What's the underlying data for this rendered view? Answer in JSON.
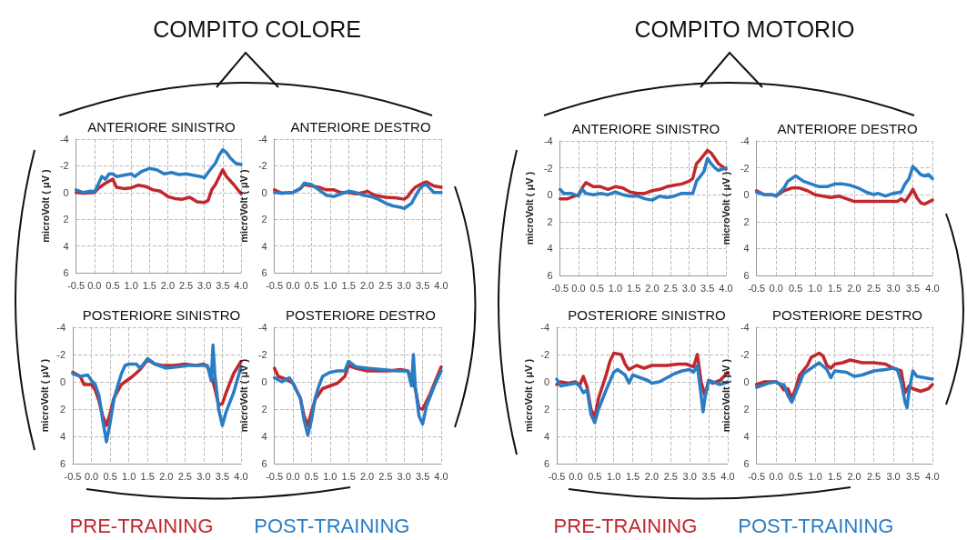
{
  "chart_data": [
    {
      "type": "line",
      "title": "ANTERIORE SINISTRO",
      "ylabel": "microVolt ( μV )",
      "annotations": [
        "COMPITO COLORE"
      ],
      "xlim": [
        -0.5,
        4.0
      ],
      "xticks": [
        -0.5,
        {
          "value": 0,
          "label": "0.0"
        },
        0.5,
        {
          "value": 1,
          "label": "1.0"
        },
        1.5,
        {
          "value": 2,
          "label": "2.0"
        },
        2.5,
        {
          "value": 3,
          "label": "3.0"
        },
        3.5,
        {
          "value": 4,
          "label": "4.0"
        }
      ],
      "ylim": [
        6,
        -4
      ],
      "yticks": [
        -4,
        -2,
        0,
        2,
        4,
        6
      ],
      "grid": true,
      "marker": "none",
      "line_style": "solid",
      "series": [
        {
          "color": "#c1272d",
          "x": [
            -0.5,
            -0.3,
            0,
            0.1,
            0.3,
            0.5,
            0.6,
            0.8,
            1.0,
            1.2,
            1.4,
            1.6,
            1.8,
            2.0,
            2.2,
            2.4,
            2.6,
            2.8,
            3.0,
            3.1,
            3.2,
            3.3,
            3.5,
            3.6,
            3.8,
            4.0
          ],
          "values": [
            0,
            0.05,
            0,
            -0.3,
            -0.7,
            -1.0,
            -0.4,
            -0.3,
            -0.35,
            -0.55,
            -0.45,
            -0.2,
            -0.1,
            0.3,
            0.45,
            0.5,
            0.35,
            0.7,
            0.75,
            0.6,
            -0.2,
            -0.6,
            -1.7,
            -1.2,
            -0.6,
            0.1
          ]
        },
        {
          "color": "#2a7dc4",
          "x": [
            -0.5,
            -0.3,
            -0.1,
            0,
            0.1,
            0.2,
            0.3,
            0.4,
            0.5,
            0.6,
            0.8,
            1.0,
            1.1,
            1.3,
            1.5,
            1.7,
            1.9,
            2.1,
            2.3,
            2.5,
            2.7,
            2.9,
            3.0,
            3.1,
            3.3,
            3.4,
            3.5,
            3.6,
            3.7,
            3.85,
            4.0
          ],
          "values": [
            -0.2,
            0,
            -0.1,
            -0.05,
            -0.6,
            -1.2,
            -1.0,
            -1.4,
            -1.4,
            -1.2,
            -1.3,
            -1.4,
            -1.2,
            -1.6,
            -1.8,
            -1.7,
            -1.4,
            -1.5,
            -1.35,
            -1.4,
            -1.3,
            -1.2,
            -1.1,
            -1.5,
            -2.2,
            -2.8,
            -3.2,
            -3.0,
            -2.6,
            -2.2,
            -2.1
          ]
        }
      ]
    },
    {
      "type": "line",
      "title": "ANTERIORE DESTRO",
      "ylabel": "microVolt ( μV )",
      "xlim": [
        -0.5,
        4.0
      ],
      "xticks": [
        -0.5,
        {
          "value": 0,
          "label": "0.0"
        },
        0.5,
        {
          "value": 1,
          "label": "1.0"
        },
        1.5,
        {
          "value": 2,
          "label": "2.0"
        },
        2.5,
        {
          "value": 3,
          "label": "3.0"
        },
        3.5,
        {
          "value": 4,
          "label": "4.0"
        }
      ],
      "ylim": [
        6,
        -4
      ],
      "yticks": [
        -4,
        -2,
        0,
        2,
        4,
        6
      ],
      "grid": true,
      "marker": "none",
      "line_style": "solid",
      "series": [
        {
          "color": "#c1272d",
          "x": [
            -0.5,
            -0.3,
            0,
            0.2,
            0.3,
            0.5,
            0.7,
            0.9,
            1.1,
            1.3,
            1.5,
            1.7,
            1.9,
            2.0,
            2.2,
            2.5,
            2.8,
            3.0,
            3.1,
            3.2,
            3.3,
            3.5,
            3.6,
            3.8,
            4.0
          ],
          "values": [
            -0.2,
            0.05,
            0,
            -0.3,
            -0.6,
            -0.5,
            -0.4,
            -0.2,
            -0.2,
            0,
            0,
            0.1,
            0,
            -0.1,
            0.2,
            0.35,
            0.4,
            0.5,
            0.3,
            -0.1,
            -0.4,
            -0.7,
            -0.8,
            -0.5,
            -0.4
          ]
        },
        {
          "color": "#2a7dc4",
          "x": [
            -0.5,
            -0.3,
            0,
            0.2,
            0.3,
            0.5,
            0.7,
            0.9,
            1.1,
            1.3,
            1.5,
            1.7,
            1.9,
            2.1,
            2.3,
            2.5,
            2.7,
            2.9,
            3.0,
            3.1,
            3.2,
            3.3,
            3.4,
            3.5,
            3.6,
            3.7,
            3.8,
            4.0
          ],
          "values": [
            0,
            0.05,
            0,
            -0.3,
            -0.7,
            -0.6,
            -0.2,
            0.2,
            0.3,
            0.1,
            -0.1,
            0,
            0.2,
            0.3,
            0.5,
            0.8,
            1.0,
            1.1,
            1.2,
            1.0,
            0.8,
            0.3,
            -0.2,
            -0.5,
            -0.6,
            -0.3,
            0,
            0
          ]
        }
      ]
    },
    {
      "type": "line",
      "title": "POSTERIORE SINISTRO",
      "ylabel": "microVolt ( μV )",
      "xlim": [
        -0.5,
        4.0
      ],
      "xticks": [
        -0.5,
        {
          "value": 0,
          "label": "0.0"
        },
        0.5,
        {
          "value": 1,
          "label": "1.0"
        },
        1.5,
        {
          "value": 2,
          "label": "2.0"
        },
        2.5,
        {
          "value": 3,
          "label": "3.0"
        },
        3.5,
        {
          "value": 4,
          "label": "4.0"
        }
      ],
      "ylim": [
        6,
        -4
      ],
      "yticks": [
        -4,
        -2,
        0,
        2,
        4,
        6
      ],
      "grid": true,
      "marker": "none",
      "line_style": "solid",
      "legend": "bottom",
      "series": [
        {
          "name": "PRE-TRAINING",
          "color": "#c1272d",
          "x": [
            -0.5,
            -0.3,
            -0.2,
            0,
            0.1,
            0.2,
            0.3,
            0.4,
            0.5,
            0.6,
            0.8,
            0.9,
            1.1,
            1.3,
            1.5,
            1.7,
            1.9,
            2.2,
            2.5,
            2.8,
            3.0,
            3.1,
            3.2,
            3.3,
            3.4,
            3.5,
            3.6,
            3.8,
            4.0
          ],
          "values": [
            -0.7,
            -0.4,
            0.2,
            0.2,
            0.6,
            1.4,
            2.5,
            3.2,
            2.3,
            1.2,
            0.2,
            0,
            -0.4,
            -0.9,
            -1.6,
            -1.3,
            -1.2,
            -1.2,
            -1.3,
            -1.2,
            -1.3,
            -1.1,
            -0.5,
            0.5,
            1.7,
            1.6,
            0.8,
            -0.6,
            -1.5
          ]
        },
        {
          "name": "POST-TRAINING",
          "color": "#2a7dc4",
          "x": [
            -0.5,
            -0.3,
            -0.1,
            0,
            0.1,
            0.2,
            0.3,
            0.4,
            0.5,
            0.6,
            0.7,
            0.8,
            0.9,
            1.0,
            1.2,
            1.3,
            1.5,
            1.7,
            2.0,
            2.3,
            2.6,
            2.9,
            3.1,
            3.2,
            3.25,
            3.3,
            3.4,
            3.5,
            3.6,
            3.8,
            4.0
          ],
          "values": [
            -0.6,
            -0.4,
            -0.5,
            -0.1,
            0.2,
            1.0,
            2.8,
            4.4,
            3.0,
            1.3,
            0.3,
            -0.6,
            -1.2,
            -1.3,
            -1.3,
            -1.0,
            -1.7,
            -1.3,
            -1.0,
            -1.1,
            -1.2,
            -1.2,
            -1.2,
            -0.1,
            -2.7,
            -0.5,
            2.0,
            3.2,
            2.2,
            0.8,
            -1.1
          ]
        }
      ]
    },
    {
      "type": "line",
      "title": "POSTERIORE DESTRO",
      "ylabel": "microVolt ( μV )",
      "xlim": [
        -0.5,
        4.0
      ],
      "xticks": [
        -0.5,
        {
          "value": 0,
          "label": "0.0"
        },
        0.5,
        {
          "value": 1,
          "label": "1.0"
        },
        1.5,
        {
          "value": 2,
          "label": "2.0"
        },
        2.5,
        {
          "value": 3,
          "label": "3.0"
        },
        3.5,
        {
          "value": 4,
          "label": "4.0"
        }
      ],
      "ylim": [
        6,
        -4
      ],
      "yticks": [
        -4,
        -2,
        0,
        2,
        4,
        6
      ],
      "grid": true,
      "marker": "none",
      "line_style": "solid",
      "series": [
        {
          "color": "#c1272d",
          "x": [
            -0.5,
            -0.4,
            -0.2,
            0,
            0.2,
            0.3,
            0.4,
            0.5,
            0.6,
            0.8,
            1.0,
            1.2,
            1.4,
            1.5,
            1.7,
            2.0,
            2.3,
            2.6,
            2.9,
            3.1,
            3.2,
            3.3,
            3.4,
            3.5,
            3.7,
            4.0
          ],
          "values": [
            -1.0,
            -0.4,
            -0.2,
            0.1,
            1.2,
            2.5,
            3.2,
            2.2,
            1.3,
            0.5,
            0.3,
            0.1,
            -0.4,
            -1.2,
            -1.0,
            -0.8,
            -0.8,
            -0.8,
            -0.9,
            -0.8,
            -0.3,
            0.5,
            1.9,
            2.0,
            0.9,
            -1.1
          ]
        },
        {
          "color": "#2a7dc4",
          "x": [
            -0.5,
            -0.3,
            -0.1,
            0,
            0.2,
            0.3,
            0.4,
            0.5,
            0.6,
            0.7,
            0.8,
            1.0,
            1.2,
            1.4,
            1.5,
            1.7,
            2.0,
            2.4,
            2.8,
            3.1,
            3.2,
            3.25,
            3.3,
            3.4,
            3.5,
            3.6,
            3.8,
            4.0
          ],
          "values": [
            -0.3,
            0,
            -0.3,
            0.1,
            1.2,
            2.8,
            3.9,
            2.8,
            1.2,
            0.3,
            -0.4,
            -0.7,
            -0.8,
            -0.8,
            -1.5,
            -1.1,
            -1.0,
            -0.9,
            -0.8,
            -0.8,
            0.3,
            -2.0,
            0.3,
            2.5,
            3.1,
            1.8,
            0.4,
            -0.8
          ]
        }
      ]
    },
    {
      "type": "line",
      "title": "ANTERIORE SINISTRO",
      "ylabel": "microVolt ( μV )",
      "annotations": [
        "COMPITO MOTORIO"
      ],
      "xlim": [
        -0.5,
        4.0
      ],
      "xticks": [
        -0.5,
        {
          "value": 0,
          "label": "0.0"
        },
        0.5,
        {
          "value": 1,
          "label": "1.0"
        },
        1.5,
        {
          "value": 2,
          "label": "2.0"
        },
        2.5,
        {
          "value": 3,
          "label": "3.0"
        },
        3.5,
        {
          "value": 4,
          "label": "4.0"
        }
      ],
      "ylim": [
        6,
        -4
      ],
      "yticks": [
        -4,
        -2,
        0,
        2,
        4,
        6
      ],
      "grid": true,
      "marker": "none",
      "line_style": "solid",
      "series": [
        {
          "color": "#c1272d",
          "x": [
            -0.5,
            -0.3,
            -0.1,
            0,
            0.1,
            0.2,
            0.4,
            0.6,
            0.8,
            1.0,
            1.2,
            1.4,
            1.6,
            1.8,
            2.0,
            2.2,
            2.4,
            2.6,
            2.8,
            3.0,
            3.1,
            3.2,
            3.3,
            3.5,
            3.6,
            3.8,
            4.0
          ],
          "values": [
            0.3,
            0.3,
            0.1,
            0,
            -0.5,
            -0.9,
            -0.6,
            -0.6,
            -0.4,
            -0.6,
            -0.5,
            -0.2,
            -0.1,
            -0.1,
            -0.3,
            -0.4,
            -0.6,
            -0.7,
            -0.8,
            -1.0,
            -1.2,
            -2.3,
            -2.6,
            -3.3,
            -3.1,
            -2.3,
            -1.9
          ]
        },
        {
          "color": "#2a7dc4",
          "x": [
            -0.5,
            -0.4,
            -0.2,
            0,
            0.1,
            0.2,
            0.4,
            0.6,
            0.8,
            1.0,
            1.2,
            1.4,
            1.6,
            1.8,
            2.0,
            2.2,
            2.4,
            2.6,
            2.8,
            3.0,
            3.1,
            3.2,
            3.4,
            3.5,
            3.6,
            3.7,
            3.8,
            4.0
          ],
          "values": [
            -0.4,
            -0.1,
            -0.1,
            0.1,
            -0.4,
            -0.1,
            0,
            -0.1,
            0,
            -0.2,
            0,
            0.1,
            0.1,
            0.3,
            0.4,
            0.1,
            0.2,
            0.1,
            -0.1,
            -0.1,
            -0.1,
            -1.0,
            -1.7,
            -2.7,
            -2.3,
            -2.0,
            -1.8,
            -2.0
          ]
        }
      ]
    },
    {
      "type": "line",
      "title": "ANTERIORE DESTRO",
      "ylabel": "microVolt ( μV )",
      "xlim": [
        -0.5,
        4.0
      ],
      "xticks": [
        -0.5,
        {
          "value": 0,
          "label": "0.0"
        },
        0.5,
        {
          "value": 1,
          "label": "1.0"
        },
        1.5,
        {
          "value": 2,
          "label": "2.0"
        },
        2.5,
        {
          "value": 3,
          "label": "3.0"
        },
        3.5,
        {
          "value": 4,
          "label": "4.0"
        }
      ],
      "ylim": [
        6,
        -4
      ],
      "yticks": [
        -4,
        -2,
        0,
        2,
        4,
        6
      ],
      "grid": true,
      "marker": "none",
      "line_style": "solid",
      "series": [
        {
          "color": "#c1272d",
          "x": [
            -0.5,
            -0.3,
            -0.1,
            0,
            0.2,
            0.4,
            0.6,
            0.8,
            1.0,
            1.2,
            1.4,
            1.6,
            1.8,
            2.0,
            2.3,
            2.6,
            2.9,
            3.1,
            3.2,
            3.3,
            3.4,
            3.5,
            3.6,
            3.7,
            3.8,
            4.0
          ],
          "values": [
            -0.3,
            0,
            0,
            0.1,
            -0.3,
            -0.5,
            -0.5,
            -0.3,
            0,
            0.1,
            0.2,
            0.1,
            0.3,
            0.5,
            0.5,
            0.5,
            0.5,
            0.5,
            0.3,
            0.5,
            0.1,
            -0.4,
            0.2,
            0.6,
            0.7,
            0.4
          ]
        },
        {
          "color": "#2a7dc4",
          "x": [
            -0.5,
            -0.3,
            -0.1,
            0,
            0.2,
            0.3,
            0.5,
            0.7,
            0.9,
            1.1,
            1.3,
            1.5,
            1.7,
            1.9,
            2.1,
            2.3,
            2.5,
            2.6,
            2.8,
            3.0,
            3.2,
            3.3,
            3.4,
            3.5,
            3.6,
            3.7,
            3.8,
            3.9,
            4.0
          ],
          "values": [
            -0.2,
            0,
            0,
            0.1,
            -0.5,
            -1.0,
            -1.4,
            -1.0,
            -0.8,
            -0.6,
            -0.6,
            -0.8,
            -0.8,
            -0.7,
            -0.5,
            -0.2,
            0,
            -0.1,
            0.1,
            -0.1,
            -0.2,
            -0.8,
            -1.2,
            -2.1,
            -1.8,
            -1.5,
            -1.4,
            -1.5,
            -1.2
          ]
        }
      ]
    },
    {
      "type": "line",
      "title": "POSTERIORE SINISTRO",
      "ylabel": "microVolt ( μV )",
      "xlim": [
        -0.5,
        4.0
      ],
      "xticks": [
        -0.5,
        {
          "value": 0,
          "label": "0.0"
        },
        0.5,
        {
          "value": 1,
          "label": "1.0"
        },
        1.5,
        {
          "value": 2,
          "label": "2.0"
        },
        2.5,
        {
          "value": 3,
          "label": "3.0"
        },
        3.5,
        {
          "value": 4,
          "label": "4.0"
        }
      ],
      "ylim": [
        6,
        -4
      ],
      "yticks": [
        -4,
        -2,
        0,
        2,
        4,
        6
      ],
      "grid": true,
      "marker": "none",
      "line_style": "solid",
      "legend": "bottom",
      "series": [
        {
          "name": "PRE-TRAINING",
          "color": "#c1272d",
          "x": [
            -0.5,
            -0.4,
            -0.2,
            0,
            0.1,
            0.2,
            0.3,
            0.4,
            0.5,
            0.6,
            0.8,
            0.9,
            1.0,
            1.2,
            1.3,
            1.4,
            1.6,
            1.8,
            2.0,
            2.4,
            2.7,
            2.9,
            3.1,
            3.2,
            3.3,
            3.4,
            3.5,
            3.6,
            3.8,
            4.0
          ],
          "values": [
            0.2,
            0,
            0.1,
            0,
            0.3,
            -0.4,
            0.4,
            2.0,
            2.6,
            1.2,
            -0.5,
            -1.5,
            -2.1,
            -2.0,
            -1.3,
            -0.9,
            -1.2,
            -1.0,
            -1.2,
            -1.2,
            -1.3,
            -1.3,
            -1.1,
            -2.0,
            0,
            1.0,
            -0.1,
            0.1,
            -0.1,
            -0.7
          ]
        },
        {
          "name": "POST-TRAINING",
          "color": "#2a7dc4",
          "x": [
            -0.5,
            -0.4,
            -0.2,
            0,
            0.1,
            0.2,
            0.3,
            0.4,
            0.5,
            0.6,
            0.8,
            1.0,
            1.1,
            1.3,
            1.4,
            1.5,
            1.7,
            1.9,
            2.0,
            2.2,
            2.4,
            2.6,
            2.8,
            3.0,
            3.1,
            3.2,
            3.3,
            3.35,
            3.4,
            3.5,
            3.6,
            3.8,
            4.0
          ],
          "values": [
            -0.2,
            0.3,
            0.2,
            0.1,
            0.3,
            0.8,
            0.6,
            2.4,
            3.0,
            2.0,
            0.6,
            -0.7,
            -0.9,
            -0.5,
            0.1,
            -0.5,
            -0.3,
            -0.1,
            0.1,
            0,
            -0.3,
            -0.6,
            -0.8,
            -0.9,
            -0.7,
            -1.2,
            1.0,
            2.2,
            1.2,
            -0.1,
            0,
            0.2,
            0
          ]
        }
      ]
    },
    {
      "type": "line",
      "title": "POSTERIORE DESTRO",
      "ylabel": "microVolt ( μV )",
      "xlim": [
        -0.5,
        4.0
      ],
      "xticks": [
        -0.5,
        {
          "value": 0,
          "label": "0.0"
        },
        0.5,
        {
          "value": 1,
          "label": "1.0"
        },
        1.5,
        {
          "value": 2,
          "label": "2.0"
        },
        2.5,
        {
          "value": 3,
          "label": "3.0"
        },
        3.5,
        {
          "value": 4,
          "label": "4.0"
        }
      ],
      "ylim": [
        6,
        -4
      ],
      "yticks": [
        -4,
        -2,
        0,
        2,
        4,
        6
      ],
      "grid": true,
      "marker": "none",
      "line_style": "solid",
      "series": [
        {
          "color": "#c1272d",
          "x": [
            -0.5,
            -0.4,
            -0.3,
            0,
            0.1,
            0.2,
            0.3,
            0.4,
            0.5,
            0.6,
            0.8,
            0.9,
            1.1,
            1.2,
            1.3,
            1.4,
            1.5,
            1.7,
            1.9,
            2.2,
            2.5,
            2.8,
            3.0,
            3.2,
            3.3,
            3.4,
            3.5,
            3.7,
            3.9,
            4.0
          ],
          "values": [
            0.2,
            0.1,
            0,
            0,
            0.2,
            0.6,
            0.5,
            1.2,
            0.5,
            -0.5,
            -1.2,
            -1.8,
            -2.1,
            -1.9,
            -1.2,
            -1.0,
            -1.3,
            -1.4,
            -1.6,
            -1.4,
            -1.4,
            -1.3,
            -1.0,
            -0.8,
            0.8,
            0.3,
            0.5,
            0.7,
            0.5,
            0.2
          ]
        },
        {
          "color": "#2a7dc4",
          "x": [
            -0.5,
            -0.4,
            -0.2,
            0,
            0.1,
            0.2,
            0.3,
            0.4,
            0.5,
            0.7,
            0.9,
            1.1,
            1.3,
            1.4,
            1.5,
            1.8,
            2.0,
            2.2,
            2.5,
            2.8,
            3.0,
            3.1,
            3.2,
            3.3,
            3.35,
            3.4,
            3.5,
            3.6,
            3.8,
            4.0
          ],
          "values": [
            0.4,
            0.3,
            0.1,
            0,
            0.2,
            0.2,
            1.0,
            1.5,
            0.8,
            -0.6,
            -1.0,
            -1.4,
            -0.9,
            -0.3,
            -0.8,
            -0.7,
            -0.4,
            -0.5,
            -0.8,
            -0.9,
            -1.0,
            -0.9,
            0,
            1.5,
            1.9,
            0.7,
            -0.8,
            -0.4,
            -0.3,
            -0.2
          ]
        }
      ]
    }
  ]
}
